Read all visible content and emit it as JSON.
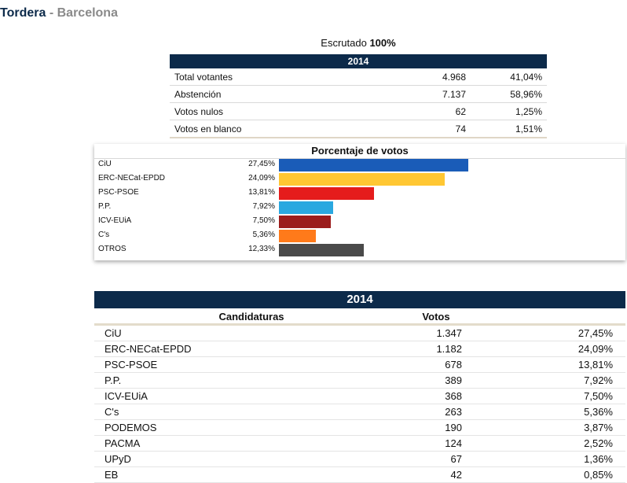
{
  "header": {
    "municipality": "Tordera",
    "separator": " - ",
    "province": "Barcelona"
  },
  "escrutado": {
    "label": "Escrutado",
    "value": "100%"
  },
  "summary": {
    "year": "2014",
    "rows": [
      {
        "label": "Total votantes",
        "count": "4.968",
        "pct": "41,04%"
      },
      {
        "label": "Abstención",
        "count": "7.137",
        "pct": "58,96%"
      },
      {
        "label": "Votos nulos",
        "count": "62",
        "pct": "1,25%"
      },
      {
        "label": "Votos en blanco",
        "count": "74",
        "pct": "1,51%"
      }
    ]
  },
  "chart_data": {
    "type": "bar",
    "title": "Porcentaje de votos",
    "categories": [
      "CiU",
      "ERC-NECat-EPDD",
      "PSC-PSOE",
      "P.P.",
      "ICV-EUiA",
      "C's",
      "OTROS"
    ],
    "values": [
      27.45,
      24.09,
      13.81,
      7.92,
      7.5,
      5.36,
      12.33
    ],
    "value_labels": [
      "27,45%",
      "24,09%",
      "13,81%",
      "7,92%",
      "7,50%",
      "5,36%",
      "12,33%"
    ],
    "colors": [
      "#1a5cb8",
      "#ffc733",
      "#e51c1c",
      "#2aa8e0",
      "#9b1c1c",
      "#ff7a1a",
      "#4a4a4a"
    ],
    "xlim": [
      0,
      30
    ]
  },
  "results": {
    "year": "2014",
    "columns": {
      "party": "Candidaturas",
      "votes": "Votos",
      "pct": ""
    },
    "rows": [
      {
        "party": "CiU",
        "votes": "1.347",
        "pct": "27,45%"
      },
      {
        "party": "ERC-NECat-EPDD",
        "votes": "1.182",
        "pct": "24,09%"
      },
      {
        "party": "PSC-PSOE",
        "votes": "678",
        "pct": "13,81%"
      },
      {
        "party": "P.P.",
        "votes": "389",
        "pct": "7,92%"
      },
      {
        "party": "ICV-EUiA",
        "votes": "368",
        "pct": "7,50%"
      },
      {
        "party": "C's",
        "votes": "263",
        "pct": "5,36%"
      },
      {
        "party": "PODEMOS",
        "votes": "190",
        "pct": "3,87%"
      },
      {
        "party": "PACMA",
        "votes": "124",
        "pct": "2,52%"
      },
      {
        "party": "UPyD",
        "votes": "67",
        "pct": "1,36%"
      },
      {
        "party": "EB",
        "votes": "42",
        "pct": "0,85%"
      }
    ]
  }
}
